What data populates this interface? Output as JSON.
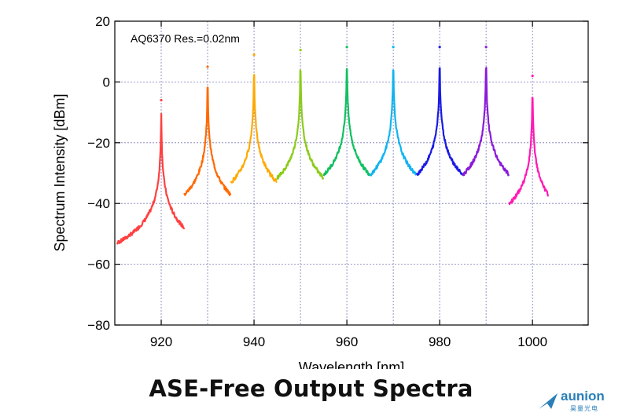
{
  "chart_data": {
    "type": "line",
    "annotation": "AQ6370 Res.=0.02nm",
    "xlabel": "Wavelength [nm]",
    "ylabel": "Spectrum Intensity [dBm]",
    "xlim": [
      910,
      1012
    ],
    "ylim": [
      -80,
      20
    ],
    "xticks": [
      920,
      940,
      960,
      980,
      1000
    ],
    "yticks": [
      20,
      0,
      -20,
      -40,
      -60,
      -80
    ],
    "xgrid": [
      920,
      930,
      940,
      950,
      960,
      970,
      980,
      990,
      1000
    ],
    "ygrid": [
      0,
      -20,
      -40,
      -60
    ],
    "grid": true,
    "noise_floor_dBm": -80,
    "series": [
      {
        "peak_nm": 920,
        "peak_dBm": -6,
        "color": "#ff4040"
      },
      {
        "peak_nm": 930,
        "peak_dBm": 5,
        "color": "#ff6a00"
      },
      {
        "peak_nm": 940,
        "peak_dBm": 9,
        "color": "#ffaa00"
      },
      {
        "peak_nm": 950,
        "peak_dBm": 10.5,
        "color": "#8ccc1a"
      },
      {
        "peak_nm": 960,
        "peak_dBm": 11.5,
        "color": "#11c060"
      },
      {
        "peak_nm": 970,
        "peak_dBm": 11.5,
        "color": "#11b4f0"
      },
      {
        "peak_nm": 980,
        "peak_dBm": 11.5,
        "color": "#1a1ae6"
      },
      {
        "peak_nm": 990,
        "peak_dBm": 11.5,
        "color": "#8a1ad9"
      },
      {
        "peak_nm": 1000,
        "peak_dBm": 2,
        "color": "#ff1ab4"
      }
    ]
  },
  "caption": "ASE-Free Output Spectra",
  "logo": {
    "text": "aunion",
    "subtext": "昊量光电"
  }
}
